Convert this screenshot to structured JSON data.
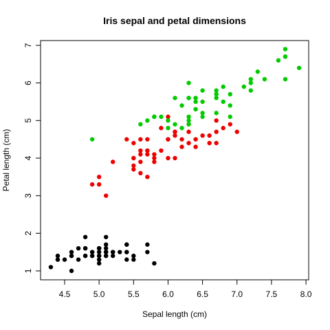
{
  "chart_data": {
    "type": "scatter",
    "title": "Iris sepal and petal dimensions",
    "xlabel": "Sepal length (cm)",
    "ylabel": "Petal length (cm)",
    "xlim": [
      4.3,
      7.9
    ],
    "ylim": [
      1.0,
      6.9
    ],
    "x_ticks": [
      4.5,
      5.0,
      5.5,
      6.0,
      6.5,
      7.0,
      7.5,
      8.0
    ],
    "x_tick_labels": [
      "4.5",
      "5.0",
      "5.5",
      "6.0",
      "6.5",
      "7.0",
      "7.5",
      "8.0"
    ],
    "y_ticks": [
      1,
      2,
      3,
      4,
      5,
      6,
      7
    ],
    "y_tick_labels": [
      "1",
      "2",
      "3",
      "4",
      "5",
      "6",
      "7"
    ],
    "grid": false,
    "series": [
      {
        "color": "#000000",
        "points": [
          [
            5.1,
            1.4
          ],
          [
            4.9,
            1.4
          ],
          [
            4.7,
            1.3
          ],
          [
            4.6,
            1.5
          ],
          [
            5.0,
            1.4
          ],
          [
            5.4,
            1.7
          ],
          [
            4.6,
            1.4
          ],
          [
            5.0,
            1.5
          ],
          [
            4.4,
            1.4
          ],
          [
            4.9,
            1.5
          ],
          [
            5.4,
            1.5
          ],
          [
            4.8,
            1.6
          ],
          [
            4.8,
            1.4
          ],
          [
            4.3,
            1.1
          ],
          [
            5.8,
            1.2
          ],
          [
            5.7,
            1.5
          ],
          [
            5.4,
            1.3
          ],
          [
            5.1,
            1.4
          ],
          [
            5.7,
            1.7
          ],
          [
            5.1,
            1.5
          ],
          [
            5.4,
            1.7
          ],
          [
            5.1,
            1.5
          ],
          [
            4.6,
            1.0
          ],
          [
            5.1,
            1.7
          ],
          [
            4.8,
            1.9
          ],
          [
            5.0,
            1.6
          ],
          [
            5.0,
            1.6
          ],
          [
            5.2,
            1.5
          ],
          [
            5.2,
            1.4
          ],
          [
            4.7,
            1.6
          ],
          [
            4.8,
            1.6
          ],
          [
            5.4,
            1.5
          ],
          [
            5.2,
            1.5
          ],
          [
            5.5,
            1.4
          ],
          [
            4.9,
            1.5
          ],
          [
            5.0,
            1.2
          ],
          [
            5.5,
            1.3
          ],
          [
            4.9,
            1.4
          ],
          [
            4.4,
            1.3
          ],
          [
            5.1,
            1.5
          ],
          [
            5.0,
            1.3
          ],
          [
            4.5,
            1.3
          ],
          [
            4.4,
            1.3
          ],
          [
            5.0,
            1.6
          ],
          [
            5.1,
            1.9
          ],
          [
            4.8,
            1.4
          ],
          [
            5.1,
            1.6
          ],
          [
            4.6,
            1.4
          ],
          [
            5.3,
            1.5
          ],
          [
            5.0,
            1.4
          ]
        ]
      },
      {
        "color": "#ee0000",
        "points": [
          [
            7.0,
            4.7
          ],
          [
            6.4,
            4.5
          ],
          [
            6.9,
            4.9
          ],
          [
            5.5,
            4.0
          ],
          [
            6.5,
            4.6
          ],
          [
            5.7,
            4.5
          ],
          [
            6.3,
            4.7
          ],
          [
            4.9,
            3.3
          ],
          [
            6.6,
            4.6
          ],
          [
            5.2,
            3.9
          ],
          [
            5.0,
            3.5
          ],
          [
            5.9,
            4.2
          ],
          [
            6.0,
            4.0
          ],
          [
            6.1,
            4.7
          ],
          [
            5.6,
            3.6
          ],
          [
            6.7,
            4.4
          ],
          [
            5.6,
            4.5
          ],
          [
            5.8,
            4.1
          ],
          [
            6.2,
            4.5
          ],
          [
            5.6,
            3.9
          ],
          [
            5.9,
            4.8
          ],
          [
            6.1,
            4.0
          ],
          [
            6.3,
            4.9
          ],
          [
            6.1,
            4.7
          ],
          [
            6.4,
            4.3
          ],
          [
            6.6,
            4.4
          ],
          [
            6.8,
            4.8
          ],
          [
            6.7,
            5.0
          ],
          [
            6.0,
            4.5
          ],
          [
            5.7,
            3.5
          ],
          [
            5.5,
            3.8
          ],
          [
            5.5,
            3.7
          ],
          [
            5.8,
            3.9
          ],
          [
            6.0,
            5.1
          ],
          [
            5.4,
            4.5
          ],
          [
            6.0,
            4.5
          ],
          [
            6.7,
            4.7
          ],
          [
            6.3,
            4.4
          ],
          [
            5.6,
            4.1
          ],
          [
            5.5,
            4.0
          ],
          [
            5.5,
            4.4
          ],
          [
            6.1,
            4.6
          ],
          [
            5.8,
            4.0
          ],
          [
            5.0,
            3.3
          ],
          [
            5.6,
            4.2
          ],
          [
            5.7,
            4.2
          ],
          [
            5.7,
            4.2
          ],
          [
            6.2,
            4.3
          ],
          [
            5.1,
            3.0
          ],
          [
            5.7,
            4.1
          ]
        ]
      },
      {
        "color": "#00cc00",
        "points": [
          [
            6.3,
            6.0
          ],
          [
            5.8,
            5.1
          ],
          [
            7.1,
            5.9
          ],
          [
            6.3,
            5.6
          ],
          [
            6.5,
            5.8
          ],
          [
            7.6,
            6.6
          ],
          [
            4.9,
            4.5
          ],
          [
            7.3,
            6.3
          ],
          [
            6.7,
            5.8
          ],
          [
            7.2,
            6.1
          ],
          [
            6.5,
            5.1
          ],
          [
            6.4,
            5.3
          ],
          [
            6.8,
            5.5
          ],
          [
            5.7,
            5.0
          ],
          [
            5.8,
            5.1
          ],
          [
            6.4,
            5.3
          ],
          [
            6.5,
            5.5
          ],
          [
            7.7,
            6.7
          ],
          [
            7.7,
            6.9
          ],
          [
            6.0,
            5.0
          ],
          [
            6.9,
            5.7
          ],
          [
            5.6,
            4.9
          ],
          [
            7.7,
            6.7
          ],
          [
            6.3,
            4.9
          ],
          [
            6.7,
            5.7
          ],
          [
            7.2,
            6.0
          ],
          [
            6.2,
            4.8
          ],
          [
            6.1,
            4.9
          ],
          [
            6.4,
            5.6
          ],
          [
            7.2,
            5.8
          ],
          [
            7.4,
            6.1
          ],
          [
            7.9,
            6.4
          ],
          [
            6.4,
            5.6
          ],
          [
            6.3,
            5.1
          ],
          [
            6.1,
            5.6
          ],
          [
            7.7,
            6.1
          ],
          [
            6.3,
            5.6
          ],
          [
            6.4,
            5.5
          ],
          [
            6.0,
            4.8
          ],
          [
            6.9,
            5.4
          ],
          [
            6.7,
            5.6
          ],
          [
            6.9,
            5.1
          ],
          [
            5.8,
            5.1
          ],
          [
            6.8,
            5.9
          ],
          [
            6.7,
            5.7
          ],
          [
            6.7,
            5.2
          ],
          [
            6.3,
            5.0
          ],
          [
            6.5,
            5.2
          ],
          [
            6.2,
            5.4
          ],
          [
            5.9,
            5.1
          ]
        ]
      }
    ]
  }
}
